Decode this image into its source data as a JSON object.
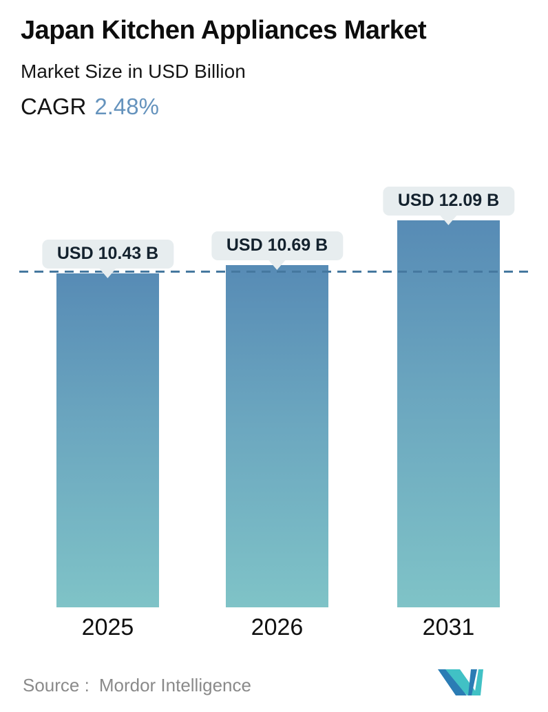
{
  "header": {
    "title": "Japan Kitchen Appliances Market",
    "subtitle": "Market Size in USD Billion",
    "cagr_label": "CAGR",
    "cagr_value": "2.48%"
  },
  "chart_data": {
    "type": "bar",
    "title": "Japan Kitchen Appliances Market",
    "subtitle": "Market Size in USD Billion",
    "unit": "USD Billion",
    "categories": [
      "2025",
      "2026",
      "2031"
    ],
    "values": [
      10.43,
      10.69,
      12.09
    ],
    "value_labels": [
      "USD 10.43 B",
      "USD 10.69 B",
      "USD 12.09 B"
    ],
    "cagr_percent": 2.48,
    "reference_line": {
      "value": 10.43,
      "style": "dashed"
    },
    "ylim": [
      0,
      12.5
    ],
    "grid": false,
    "legend": "none",
    "bar_gradient_top": "#578bb5",
    "bar_gradient_bottom": "#7fc3c7"
  },
  "footer": {
    "source_label": "Source :",
    "source_value": "Mordor Intelligence",
    "logo_name": "mordor-intelligence-logo"
  },
  "colors": {
    "accent_blue": "#6593bd",
    "bubble_bg": "#e7edef",
    "dashed_line": "#45789f",
    "source_gray": "#8a8a8a",
    "logo_teal": "#41c1c5",
    "logo_blue": "#2b7cb4"
  }
}
